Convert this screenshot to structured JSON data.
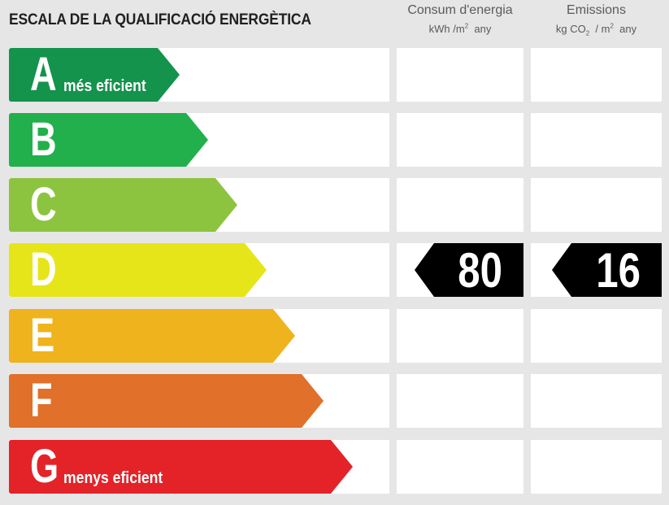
{
  "header": {
    "title": "ESCALA DE LA QUALIFICACIÓ ENERGÈTICA",
    "consum": {
      "title": "Consum d'energia",
      "unit_main": "kWh /m",
      "unit_sup": "2",
      "unit_tail": "  any"
    },
    "emissions": {
      "title": "Emissions",
      "unit_main": "kg CO",
      "unit_sub": "2",
      "unit_mid": "  / m",
      "unit_sup": "2",
      "unit_tail": "  any"
    }
  },
  "ratings": [
    {
      "letter": "A",
      "label": "més eficient",
      "color": "#13934b"
    },
    {
      "letter": "B",
      "label": "",
      "color": "#21b04b"
    },
    {
      "letter": "C",
      "label": "",
      "color": "#8dc43f"
    },
    {
      "letter": "D",
      "label": "",
      "color": "#e6e519"
    },
    {
      "letter": "E",
      "label": "",
      "color": "#efb31e"
    },
    {
      "letter": "F",
      "label": "",
      "color": "#e0702a"
    },
    {
      "letter": "G",
      "label": "menys eficient",
      "color": "#e32328"
    }
  ],
  "result": {
    "rating": "D",
    "consum_value": "80",
    "emissions_value": "16"
  }
}
